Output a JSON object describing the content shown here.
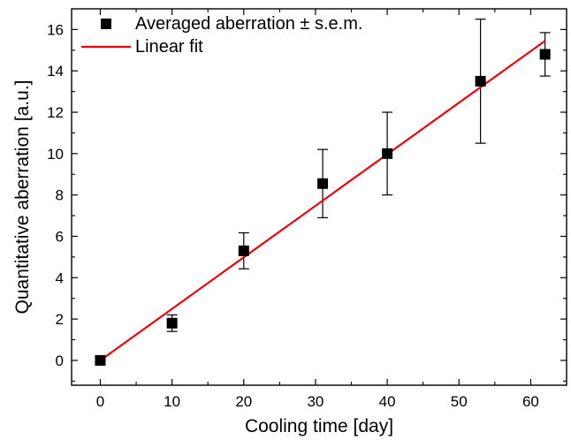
{
  "chart_data": {
    "type": "scatter",
    "title": "",
    "xlabel": "Cooling time [day]",
    "ylabel": "Quantitative aberration [a.u.]",
    "xlim": [
      -4,
      65
    ],
    "ylim": [
      -1.2,
      17
    ],
    "x_ticks": [
      0,
      10,
      20,
      30,
      40,
      50,
      60
    ],
    "y_ticks": [
      0,
      2,
      4,
      6,
      8,
      10,
      12,
      14,
      16
    ],
    "x_tick_labels": [
      "0",
      "10",
      "20",
      "30",
      "40",
      "50",
      "60"
    ],
    "y_tick_labels": [
      "0",
      "2",
      "4",
      "6",
      "8",
      "10",
      "12",
      "14",
      "16"
    ],
    "grid": false,
    "legend_position": "top-left",
    "series": [
      {
        "name": "Averaged aberration ± s.e.m.",
        "kind": "points-with-errorbars",
        "marker": "square",
        "color": "#000000",
        "points": [
          {
            "x": 0,
            "y": 0.0,
            "err": 0.0
          },
          {
            "x": 10,
            "y": 1.8,
            "err": 0.4
          },
          {
            "x": 20,
            "y": 5.3,
            "err": 0.87
          },
          {
            "x": 31,
            "y": 8.55,
            "err": 1.65
          },
          {
            "x": 40,
            "y": 10.0,
            "err": 2.0
          },
          {
            "x": 53,
            "y": 13.5,
            "err": 3.0
          },
          {
            "x": 62,
            "y": 14.8,
            "err": 1.05
          }
        ]
      },
      {
        "name": "Linear fit",
        "kind": "line",
        "color": "#e8000b",
        "x": [
          0,
          62
        ],
        "values": [
          0.0,
          15.45
        ]
      }
    ]
  }
}
